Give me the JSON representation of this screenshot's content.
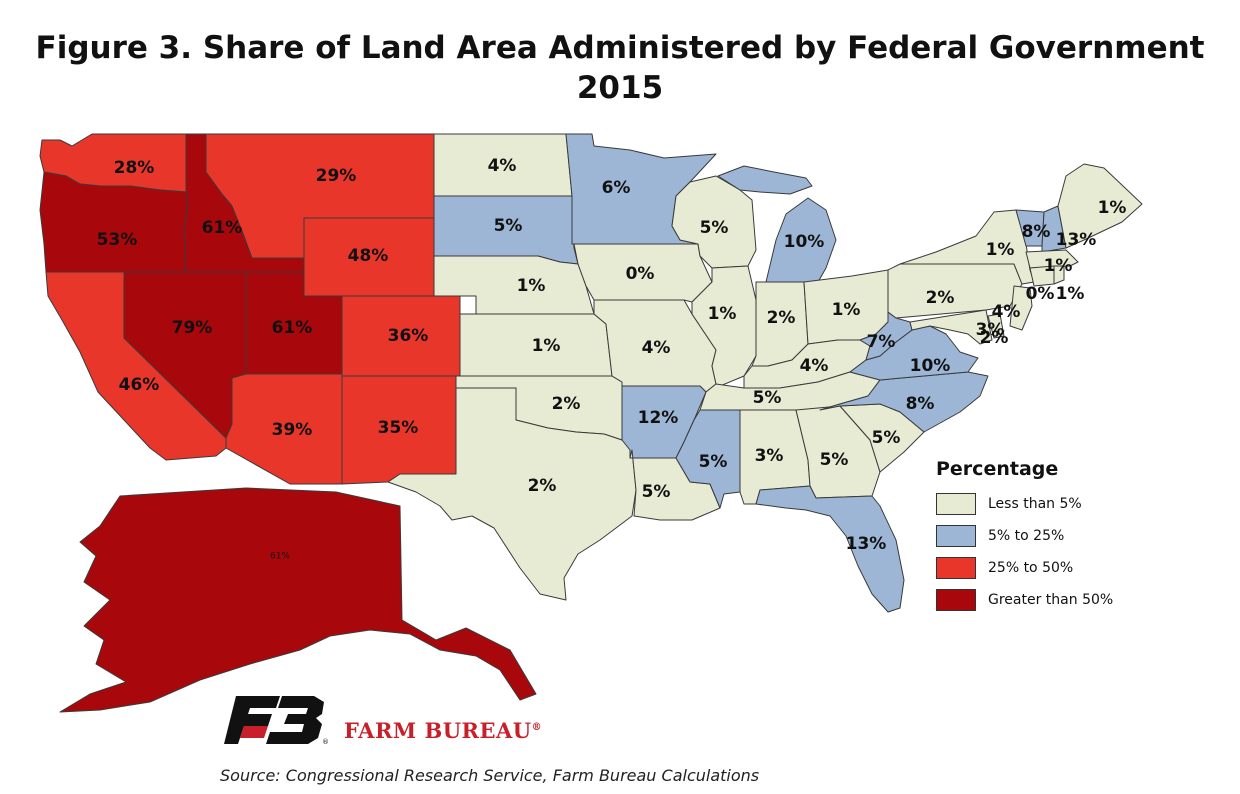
{
  "title": {
    "line1": "Figure 3. Share of Land Area Administered by Federal Government",
    "line2": "2015"
  },
  "colors": {
    "lt5": "#e8ebd3",
    "5to25": "#9db6d6",
    "25to50": "#e8362b",
    "gt50": "#a8080b"
  },
  "legend": {
    "title": "Percentage",
    "items": [
      {
        "key": "lt5",
        "label": "Less than 5%"
      },
      {
        "key": "5to25",
        "label": "5% to 25%"
      },
      {
        "key": "25to50",
        "label": "25% to 50%"
      },
      {
        "key": "gt50",
        "label": "Greater than 50%"
      }
    ]
  },
  "states": [
    {
      "id": "WA",
      "value": "28%",
      "cat": "25to50"
    },
    {
      "id": "OR",
      "value": "53%",
      "cat": "gt50"
    },
    {
      "id": "CA",
      "value": "46%",
      "cat": "25to50"
    },
    {
      "id": "ID",
      "value": "61%",
      "cat": "gt50"
    },
    {
      "id": "NV",
      "value": "79%",
      "cat": "gt50"
    },
    {
      "id": "UT",
      "value": "61%",
      "cat": "gt50"
    },
    {
      "id": "AZ",
      "value": "39%",
      "cat": "25to50"
    },
    {
      "id": "MT",
      "value": "29%",
      "cat": "25to50"
    },
    {
      "id": "WY",
      "value": "48%",
      "cat": "25to50"
    },
    {
      "id": "CO",
      "value": "36%",
      "cat": "25to50"
    },
    {
      "id": "NM",
      "value": "35%",
      "cat": "25to50"
    },
    {
      "id": "ND",
      "value": "4%",
      "cat": "lt5"
    },
    {
      "id": "SD",
      "value": "5%",
      "cat": "5to25"
    },
    {
      "id": "NE",
      "value": "1%",
      "cat": "lt5"
    },
    {
      "id": "KS",
      "value": "1%",
      "cat": "lt5"
    },
    {
      "id": "OK",
      "value": "2%",
      "cat": "lt5"
    },
    {
      "id": "TX",
      "value": "2%",
      "cat": "lt5"
    },
    {
      "id": "MN",
      "value": "6%",
      "cat": "5to25"
    },
    {
      "id": "IA",
      "value": "0%",
      "cat": "lt5"
    },
    {
      "id": "MO",
      "value": "4%",
      "cat": "lt5"
    },
    {
      "id": "AR",
      "value": "12%",
      "cat": "5to25"
    },
    {
      "id": "LA",
      "value": "5%",
      "cat": "lt5"
    },
    {
      "id": "WI",
      "value": "5%",
      "cat": "lt5"
    },
    {
      "id": "IL",
      "value": "1%",
      "cat": "lt5"
    },
    {
      "id": "MI",
      "value": "10%",
      "cat": "5to25"
    },
    {
      "id": "IN",
      "value": "2%",
      "cat": "lt5"
    },
    {
      "id": "OH",
      "value": "1%",
      "cat": "lt5"
    },
    {
      "id": "KY",
      "value": "4%",
      "cat": "lt5"
    },
    {
      "id": "TN",
      "value": "5%",
      "cat": "lt5"
    },
    {
      "id": "MS",
      "value": "5%",
      "cat": "5to25"
    },
    {
      "id": "AL",
      "value": "3%",
      "cat": "lt5"
    },
    {
      "id": "GA",
      "value": "5%",
      "cat": "lt5"
    },
    {
      "id": "FL",
      "value": "13%",
      "cat": "5to25"
    },
    {
      "id": "SC",
      "value": "5%",
      "cat": "lt5"
    },
    {
      "id": "NC",
      "value": "8%",
      "cat": "5to25"
    },
    {
      "id": "VA",
      "value": "10%",
      "cat": "5to25"
    },
    {
      "id": "WV",
      "value": "7%",
      "cat": "5to25"
    },
    {
      "id": "PA",
      "value": "2%",
      "cat": "lt5"
    },
    {
      "id": "NY",
      "value": "1%",
      "cat": "lt5"
    },
    {
      "id": "VT",
      "value": "8%",
      "cat": "5to25"
    },
    {
      "id": "NH",
      "value": "13%",
      "cat": "5to25"
    },
    {
      "id": "ME",
      "value": "1%",
      "cat": "lt5"
    },
    {
      "id": "MA",
      "value": "1%",
      "cat": "lt5"
    },
    {
      "id": "CT",
      "value": "0%",
      "cat": "lt5"
    },
    {
      "id": "RI",
      "value": "1%",
      "cat": "lt5"
    },
    {
      "id": "NJ",
      "value": "4%",
      "cat": "lt5"
    },
    {
      "id": "DE",
      "value": "3%",
      "cat": "lt5"
    },
    {
      "id": "MD",
      "value": "2%",
      "cat": "lt5"
    },
    {
      "id": "AK",
      "value": "61%",
      "cat": "gt50"
    }
  ],
  "brand": {
    "name": "FARM BUREAU",
    "reg": "®"
  },
  "source": "Source: Congressional Research Service, Farm Bureau Calculations"
}
